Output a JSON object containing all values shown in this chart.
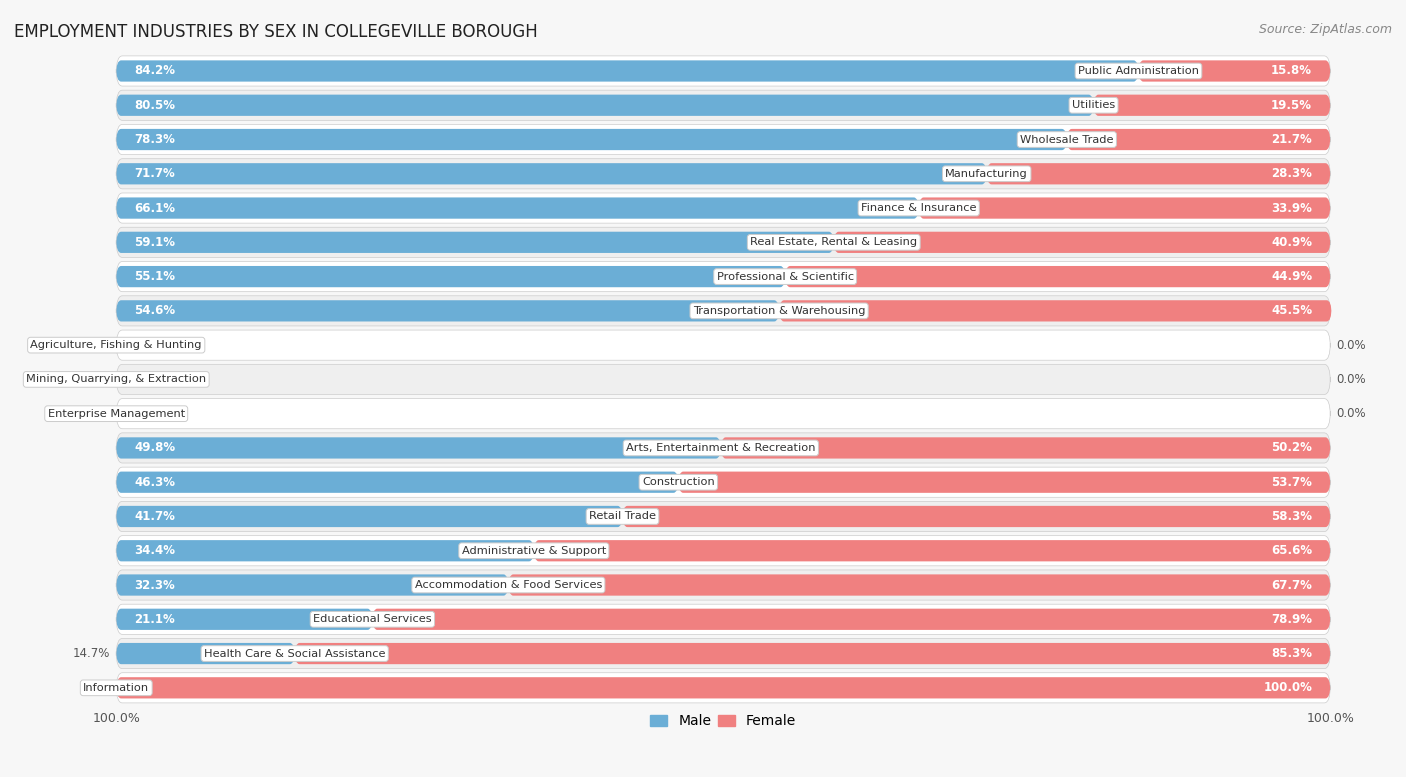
{
  "title": "EMPLOYMENT INDUSTRIES BY SEX IN COLLEGEVILLE BOROUGH",
  "source": "Source: ZipAtlas.com",
  "categories": [
    "Public Administration",
    "Utilities",
    "Wholesale Trade",
    "Manufacturing",
    "Finance & Insurance",
    "Real Estate, Rental & Leasing",
    "Professional & Scientific",
    "Transportation & Warehousing",
    "Agriculture, Fishing & Hunting",
    "Mining, Quarrying, & Extraction",
    "Enterprise Management",
    "Arts, Entertainment & Recreation",
    "Construction",
    "Retail Trade",
    "Administrative & Support",
    "Accommodation & Food Services",
    "Educational Services",
    "Health Care & Social Assistance",
    "Information"
  ],
  "male": [
    84.2,
    80.5,
    78.3,
    71.7,
    66.1,
    59.1,
    55.1,
    54.6,
    0.0,
    0.0,
    0.0,
    49.8,
    46.3,
    41.7,
    34.4,
    32.3,
    21.1,
    14.7,
    0.0
  ],
  "female": [
    15.8,
    19.5,
    21.7,
    28.3,
    33.9,
    40.9,
    44.9,
    45.5,
    0.0,
    0.0,
    0.0,
    50.2,
    53.7,
    58.3,
    65.6,
    67.7,
    78.9,
    85.3,
    100.0
  ],
  "male_color": "#6BAED6",
  "female_color": "#F08080",
  "bg_color": "#f7f7f7",
  "row_bg_light": "#ffffff",
  "row_bg_dark": "#efefef",
  "bar_height": 0.62,
  "legend_male": "Male",
  "legend_female": "Female"
}
